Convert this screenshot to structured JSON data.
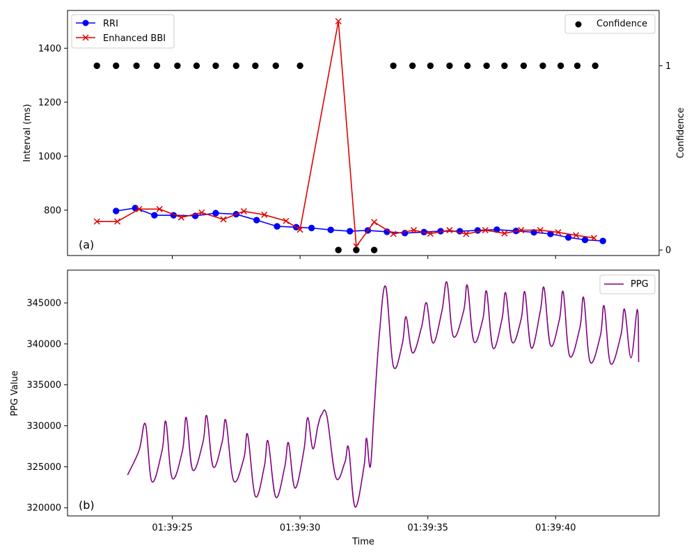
{
  "chart_data": [
    {
      "type": "line",
      "panel_label": "(a)",
      "ylabel": "Interval (ms)",
      "ylabel_right": "Confidence",
      "ylim": [
        632,
        1540
      ],
      "ylim_right": [
        -0.03,
        1.3
      ],
      "yticks": [
        "800",
        "1000",
        "1200",
        "1400"
      ],
      "yticks_right": [
        "0",
        "1"
      ],
      "legend": "upper left",
      "legend_right": "upper right",
      "series": [
        {
          "name": "RRI",
          "color": "#0000ff",
          "marker": "circle",
          "points": [
            [
              "01:39:22.80",
              797
            ],
            [
              "01:39:23.55",
              808
            ],
            [
              "01:39:24.30",
              781
            ],
            [
              "01:39:25.05",
              781
            ],
            [
              "01:39:25.90",
              779
            ],
            [
              "01:39:26.70",
              789
            ],
            [
              "01:39:27.50",
              785
            ],
            [
              "01:39:28.30",
              763
            ],
            [
              "01:39:29.10",
              740
            ],
            [
              "01:39:29.85",
              737
            ],
            [
              "01:39:30.45",
              734
            ],
            [
              "01:39:31.20",
              727
            ],
            [
              "01:39:31.95",
              722
            ],
            [
              "01:39:32.65",
              725
            ],
            [
              "01:39:33.40",
              720
            ],
            [
              "01:39:34.10",
              715
            ],
            [
              "01:39:34.85",
              719
            ],
            [
              "01:39:35.50",
              722
            ],
            [
              "01:39:36.25",
              722
            ],
            [
              "01:39:36.95",
              725
            ],
            [
              "01:39:37.70",
              728
            ],
            [
              "01:39:38.45",
              723
            ],
            [
              "01:39:39.15",
              718
            ],
            [
              "01:39:39.80",
              712
            ],
            [
              "01:39:40.50",
              699
            ],
            [
              "01:39:41.15",
              690
            ],
            [
              "01:39:41.85",
              686
            ]
          ]
        },
        {
          "name": "Enhanced BBI",
          "color": "#e00000",
          "marker": "x",
          "points": [
            [
              "01:39:22.05",
              758
            ],
            [
              "01:39:22.85",
              758
            ],
            [
              "01:39:23.70",
              804
            ],
            [
              "01:39:24.50",
              804
            ],
            [
              "01:39:25.35",
              773
            ],
            [
              "01:39:26.15",
              791
            ],
            [
              "01:39:27.00",
              766
            ],
            [
              "01:39:27.80",
              796
            ],
            [
              "01:39:28.60",
              783
            ],
            [
              "01:39:29.45",
              760
            ],
            [
              "01:39:30.00",
              728
            ],
            [
              "01:39:31.50",
              1500
            ],
            [
              "01:39:32.20",
              666
            ],
            [
              "01:39:32.90",
              756
            ],
            [
              "01:39:33.65",
              712
            ],
            [
              "01:39:34.45",
              726
            ],
            [
              "01:39:35.10",
              713
            ],
            [
              "01:39:35.85",
              726
            ],
            [
              "01:39:36.50",
              712
            ],
            [
              "01:39:37.25",
              726
            ],
            [
              "01:39:38.00",
              714
            ],
            [
              "01:39:38.65",
              726
            ],
            [
              "01:39:39.40",
              726
            ],
            [
              "01:39:40.10",
              718
            ],
            [
              "01:39:40.80",
              707
            ],
            [
              "01:39:41.50",
              697
            ]
          ]
        },
        {
          "name": "Confidence",
          "color": "#000000",
          "marker": "circle",
          "axis": "right",
          "points": [
            [
              "01:39:22.05",
              1
            ],
            [
              "01:39:22.80",
              1
            ],
            [
              "01:39:23.60",
              1
            ],
            [
              "01:39:24.40",
              1
            ],
            [
              "01:39:25.20",
              1
            ],
            [
              "01:39:25.95",
              1
            ],
            [
              "01:39:26.70",
              1
            ],
            [
              "01:39:27.50",
              1
            ],
            [
              "01:39:28.25",
              1
            ],
            [
              "01:39:29.05",
              1
            ],
            [
              "01:39:30.00",
              1
            ],
            [
              "01:39:31.50",
              0
            ],
            [
              "01:39:32.20",
              0
            ],
            [
              "01:39:32.90",
              0
            ],
            [
              "01:39:33.65",
              1
            ],
            [
              "01:39:34.40",
              1
            ],
            [
              "01:39:35.10",
              1
            ],
            [
              "01:39:35.85",
              1
            ],
            [
              "01:39:36.55",
              1
            ],
            [
              "01:39:37.30",
              1
            ],
            [
              "01:39:38.00",
              1
            ],
            [
              "01:39:38.75",
              1
            ],
            [
              "01:39:39.50",
              1
            ],
            [
              "01:39:40.20",
              1
            ],
            [
              "01:39:40.85",
              1
            ],
            [
              "01:39:41.55",
              1
            ]
          ]
        }
      ]
    },
    {
      "type": "line",
      "panel_label": "(b)",
      "xlabel": "Time",
      "ylabel": "PPG Value",
      "ylim": [
        319000,
        349000
      ],
      "yticks": [
        "320000",
        "325000",
        "330000",
        "335000",
        "340000",
        "345000"
      ],
      "xlim": [
        "01:39:20.90",
        "01:39:44.05"
      ],
      "xticks": [
        "01:39:25",
        "01:39:30",
        "01:39:35",
        "01:39:40"
      ],
      "legend": "upper right",
      "series": [
        {
          "name": "PPG",
          "color": "#800080",
          "x_range": [
            "01:39:23.25",
            "01:39:43.25"
          ],
          "keypoints": [
            [
              "01:39:23.25",
              324000
            ],
            [
              "01:39:23.70",
              327000
            ],
            [
              "01:39:23.95",
              330200
            ],
            [
              "01:39:24.20",
              323200
            ],
            [
              "01:39:24.60",
              327000
            ],
            [
              "01:39:24.75",
              330500
            ],
            [
              "01:39:25.00",
              323600
            ],
            [
              "01:39:25.40",
              327000
            ],
            [
              "01:39:25.55",
              331000
            ],
            [
              "01:39:25.80",
              324600
            ],
            [
              "01:39:26.20",
              328000
            ],
            [
              "01:39:26.35",
              331200
            ],
            [
              "01:39:26.60",
              325000
            ],
            [
              "01:39:26.95",
              328000
            ],
            [
              "01:39:27.10",
              330600
            ],
            [
              "01:39:27.40",
              323300
            ],
            [
              "01:39:27.80",
              326000
            ],
            [
              "01:39:27.95",
              328900
            ],
            [
              "01:39:28.25",
              321400
            ],
            [
              "01:39:28.60",
              325000
            ],
            [
              "01:39:28.75",
              328100
            ],
            [
              "01:39:29.05",
              321300
            ],
            [
              "01:39:29.40",
              325000
            ],
            [
              "01:39:29.55",
              327900
            ],
            [
              "01:39:29.80",
              322400
            ],
            [
              "01:39:30.15",
              327000
            ],
            [
              "01:39:30.30",
              331000
            ],
            [
              "01:39:30.50",
              327200
            ],
            [
              "01:39:30.70",
              330000
            ],
            [
              "01:39:30.85",
              331400
            ],
            [
              "01:39:31.05",
              331200
            ],
            [
              "01:39:31.40",
              323700
            ],
            [
              "01:39:31.75",
              325500
            ],
            [
              "01:39:31.90",
              327300
            ],
            [
              "01:39:32.15",
              320100
            ],
            [
              "01:39:32.50",
              325000
            ],
            [
              "01:39:32.60",
              328500
            ],
            [
              "01:39:32.75",
              325000
            ],
            [
              "01:39:32.90",
              332000
            ],
            [
              "01:39:33.10",
              341000
            ],
            [
              "01:39:33.35",
              347000
            ],
            [
              "01:39:33.65",
              337300
            ],
            [
              "01:39:34.00",
              340000
            ],
            [
              "01:39:34.15",
              343300
            ],
            [
              "01:39:34.40",
              338900
            ],
            [
              "01:39:34.75",
              342000
            ],
            [
              "01:39:34.95",
              345000
            ],
            [
              "01:39:35.20",
              340100
            ],
            [
              "01:39:35.55",
              344000
            ],
            [
              "01:39:35.75",
              347500
            ],
            [
              "01:39:36.00",
              340900
            ],
            [
              "01:39:36.40",
              344000
            ],
            [
              "01:39:36.55",
              347100
            ],
            [
              "01:39:36.80",
              340300
            ],
            [
              "01:39:37.15",
              343000
            ],
            [
              "01:39:37.30",
              346400
            ],
            [
              "01:39:37.55",
              339500
            ],
            [
              "01:39:37.90",
              343000
            ],
            [
              "01:39:38.05",
              346200
            ],
            [
              "01:39:38.30",
              340200
            ],
            [
              "01:39:38.65",
              343000
            ],
            [
              "01:39:38.80",
              346300
            ],
            [
              "01:39:39.05",
              339500
            ],
            [
              "01:39:39.40",
              344000
            ],
            [
              "01:39:39.55",
              346800
            ],
            [
              "01:39:39.80",
              339800
            ],
            [
              "01:39:40.15",
              343000
            ],
            [
              "01:39:40.30",
              346300
            ],
            [
              "01:39:40.55",
              338500
            ],
            [
              "01:39:40.95",
              342000
            ],
            [
              "01:39:41.10",
              345600
            ],
            [
              "01:39:41.35",
              337800
            ],
            [
              "01:39:41.75",
              341000
            ],
            [
              "01:39:41.90",
              344600
            ],
            [
              "01:39:42.15",
              337600
            ],
            [
              "01:39:42.55",
              341000
            ],
            [
              "01:39:42.70",
              344200
            ],
            [
              "01:39:42.95",
              338300
            ],
            [
              "01:39:43.20",
              344200
            ],
            [
              "01:39:43.25",
              337800
            ]
          ]
        }
      ]
    }
  ]
}
